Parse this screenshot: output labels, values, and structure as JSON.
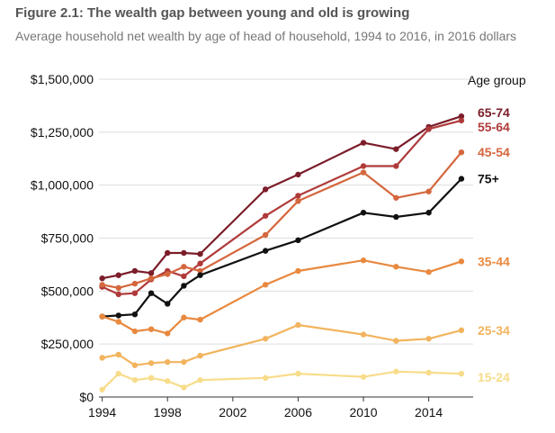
{
  "header": {
    "title": "Figure 2.1: The wealth gap between young and old is growing",
    "subtitle": "Average household net wealth by age of head of household, 1994 to 2016, in 2016 dollars"
  },
  "chart_data": {
    "type": "line",
    "title": "Figure 2.1: The wealth gap between young and old is growing",
    "subtitle": "Average household net wealth by age of head of household, 1994 to 2016, in 2016 dollars",
    "xlabel": "",
    "ylabel": "",
    "xlim": [
      1993.8,
      2016.5
    ],
    "ylim": [
      0,
      1500000
    ],
    "grid": true,
    "legend_title": "Age group",
    "x_ticks": [
      1994,
      1998,
      2002,
      2006,
      2010,
      2014
    ],
    "x_tick_labels": [
      "1994",
      "1998",
      "2002",
      "2006",
      "2010",
      "2014"
    ],
    "y_ticks": [
      0,
      250000,
      500000,
      750000,
      1000000,
      1250000,
      1500000
    ],
    "y_tick_labels": [
      "$0",
      "$250,000",
      "$500,000",
      "$750,000",
      "$1,000,000",
      "$1,250,000",
      "$1,500,000"
    ],
    "series": [
      {
        "name": "65-74",
        "color": "#7b1d2a",
        "x": [
          1994,
          1995,
          1996,
          1997,
          1998,
          1999,
          2000,
          2004,
          2006,
          2010,
          2012,
          2014,
          2016
        ],
        "values": [
          560000,
          575000,
          595000,
          585000,
          680000,
          680000,
          675000,
          980000,
          1050000,
          1200000,
          1170000,
          1275000,
          1325000
        ]
      },
      {
        "name": "55-64",
        "color": "#b03a3a",
        "x": [
          1994,
          1995,
          1996,
          1997,
          1998,
          1999,
          2000,
          2004,
          2006,
          2010,
          2012,
          2014,
          2016
        ],
        "values": [
          520000,
          485000,
          490000,
          555000,
          595000,
          570000,
          630000,
          855000,
          950000,
          1090000,
          1090000,
          1265000,
          1305000
        ]
      },
      {
        "name": "45-54",
        "color": "#d4673d",
        "x": [
          1994,
          1995,
          1996,
          1997,
          1998,
          1999,
          2000,
          2004,
          2006,
          2010,
          2012,
          2014,
          2016
        ],
        "values": [
          530000,
          515000,
          535000,
          560000,
          580000,
          615000,
          595000,
          765000,
          925000,
          1060000,
          940000,
          970000,
          1155000
        ]
      },
      {
        "name": "75+",
        "color": "#111111",
        "x": [
          1994,
          1995,
          1996,
          1997,
          1998,
          1999,
          2000,
          2004,
          2006,
          2010,
          2012,
          2014,
          2016
        ],
        "values": [
          380000,
          385000,
          390000,
          490000,
          440000,
          525000,
          575000,
          690000,
          740000,
          870000,
          850000,
          870000,
          1030000
        ]
      },
      {
        "name": "35-44",
        "color": "#e8893f",
        "x": [
          1994,
          1995,
          1996,
          1997,
          1998,
          1999,
          2000,
          2004,
          2006,
          2010,
          2012,
          2014,
          2016
        ],
        "values": [
          380000,
          355000,
          310000,
          320000,
          300000,
          375000,
          365000,
          530000,
          595000,
          645000,
          615000,
          590000,
          640000
        ]
      },
      {
        "name": "25-34",
        "color": "#f2b45e",
        "x": [
          1994,
          1995,
          1996,
          1997,
          1998,
          1999,
          2000,
          2004,
          2006,
          2010,
          2012,
          2014,
          2016
        ],
        "values": [
          185000,
          200000,
          150000,
          160000,
          165000,
          165000,
          195000,
          275000,
          340000,
          295000,
          265000,
          275000,
          315000
        ]
      },
      {
        "name": "15-24",
        "color": "#f7dc8a",
        "x": [
          1994,
          1995,
          1996,
          1997,
          1998,
          1999,
          2000,
          2004,
          2006,
          2010,
          2012,
          2014,
          2016
        ],
        "values": [
          35000,
          110000,
          80000,
          90000,
          75000,
          45000,
          80000,
          90000,
          110000,
          95000,
          120000,
          115000,
          110000
        ]
      }
    ]
  }
}
